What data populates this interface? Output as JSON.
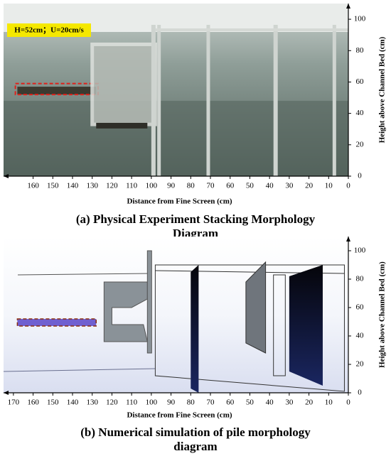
{
  "chart_data": [
    {
      "type": "photo",
      "annotation": "H=52cm；U=20cm/s",
      "xlabel": "Distance from Fine Screen (cm)",
      "ylabel": "Height above Channel Bed (cm)",
      "caption": "(a) Physical Experiment Stacking Morphology Diagram",
      "xlim": [
        175,
        0
      ],
      "xticks": [
        160,
        150,
        140,
        130,
        120,
        110,
        100,
        90,
        80,
        70,
        60,
        50,
        40,
        30,
        20,
        10,
        0
      ],
      "ylim": [
        0,
        110
      ],
      "yticks": [
        0,
        20,
        40,
        60,
        80,
        100
      ]
    },
    {
      "type": "render",
      "xlabel": "Distance from Fine Screen (cm)",
      "ylabel": "Height above Channel Bed (cm)",
      "caption": "(b) Numerical simulation of pile morphology diagram",
      "xlim": [
        175,
        0
      ],
      "xticks": [
        170,
        160,
        150,
        140,
        130,
        120,
        110,
        100,
        90,
        80,
        70,
        60,
        50,
        40,
        30,
        20,
        10,
        0
      ],
      "ylim": [
        0,
        110
      ],
      "yticks": [
        0,
        20,
        40,
        60,
        80,
        100
      ]
    }
  ]
}
